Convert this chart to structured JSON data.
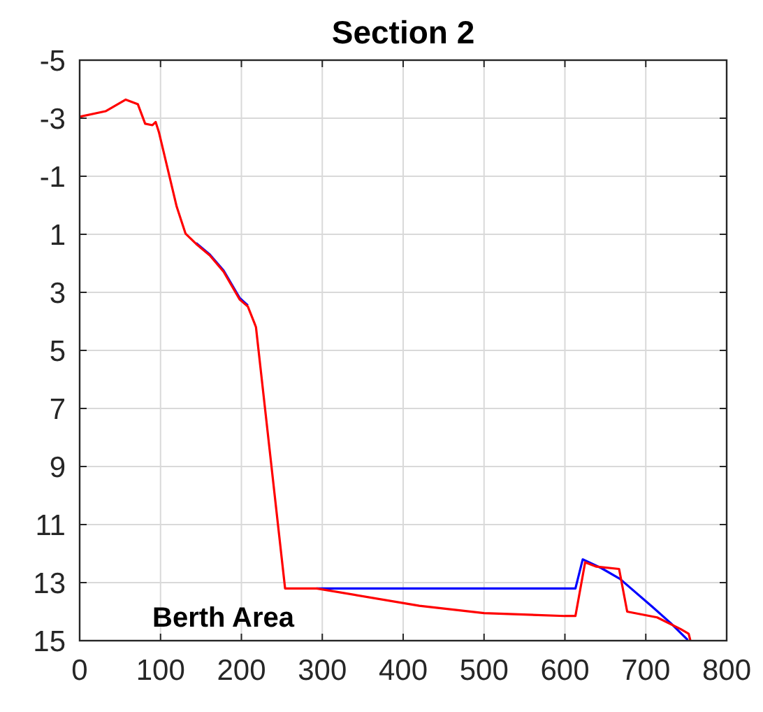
{
  "chart_data": {
    "type": "line",
    "title": "Section 2",
    "annotations": [
      "Berth Area"
    ],
    "xlim": [
      0,
      800
    ],
    "xticks": [
      0,
      100,
      200,
      300,
      400,
      500,
      600,
      700,
      800
    ],
    "ylim": [
      15,
      -5
    ],
    "yticks": [
      -5,
      -3,
      -1,
      1,
      3,
      5,
      7,
      9,
      11,
      13,
      15
    ],
    "grid": true,
    "line_style": "solid",
    "marker": "none",
    "series": [
      {
        "color": "#0000ff",
        "x": [
          144,
          161,
          178,
          198,
          208,
          216,
          218,
          254,
          293,
          613,
          622,
          645,
          668,
          708,
          731,
          752
        ],
        "values": [
          1.3,
          1.7,
          2.25,
          3.2,
          3.45,
          null,
          null,
          null,
          13.2,
          13.2,
          12.2,
          12.5,
          12.87,
          13.83,
          14.4,
          14.98
        ]
      },
      {
        "color": "#ff0000",
        "x": [
          0,
          32,
          57,
          72,
          81,
          90,
          94,
          98,
          120,
          131,
          144,
          161,
          178,
          198,
          208,
          216,
          218,
          254,
          293,
          420,
          500,
          600,
          613,
          625,
          639,
          667,
          677,
          714,
          743,
          753,
          755
        ],
        "values": [
          -3.05,
          -3.24,
          -3.64,
          -3.48,
          -2.81,
          -2.76,
          -2.87,
          -2.52,
          0.05,
          0.98,
          1.33,
          1.73,
          2.29,
          3.25,
          3.49,
          4.05,
          4.2,
          13.2,
          13.2,
          13.8,
          14.05,
          14.15,
          14.15,
          12.3,
          12.45,
          12.53,
          14.0,
          14.2,
          14.6,
          14.76,
          14.98
        ]
      }
    ]
  }
}
